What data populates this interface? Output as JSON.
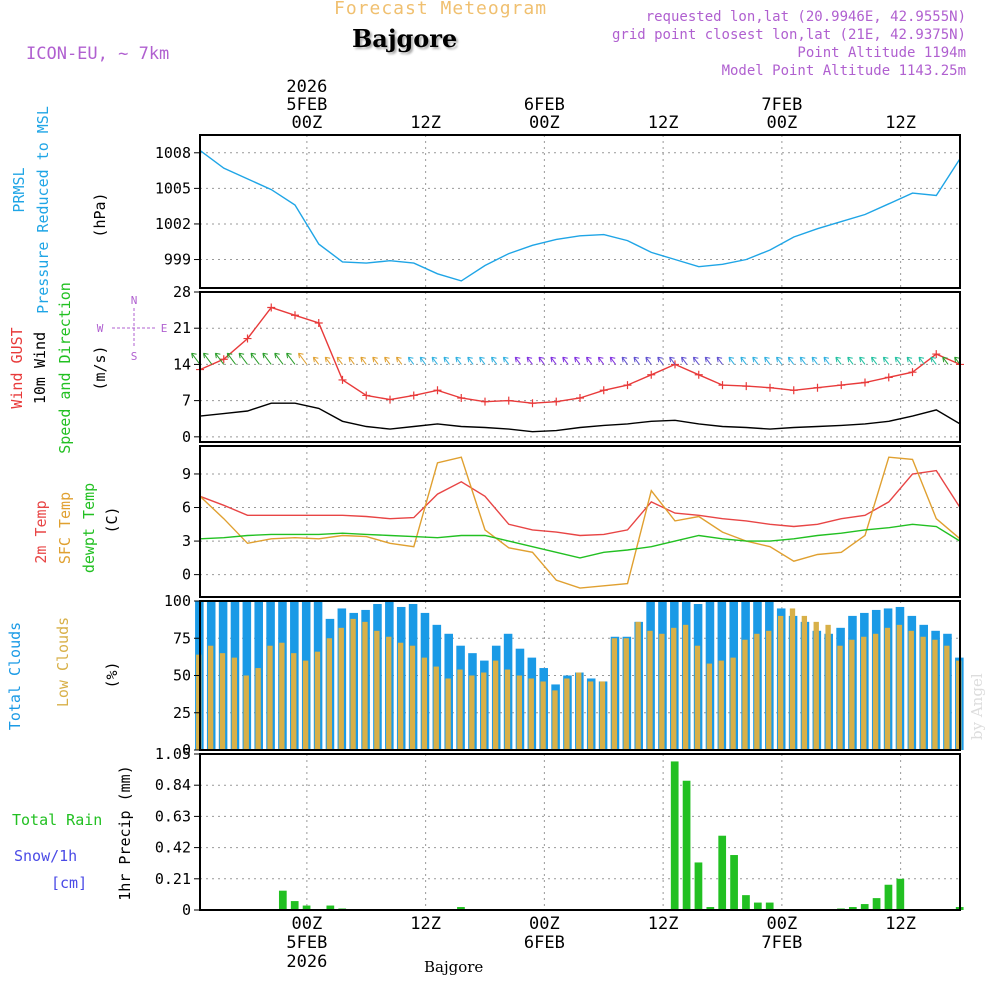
{
  "header": {
    "forecast_title": "Forecast Meteogram",
    "location": "Bajgore",
    "model": "ICON-EU, ~ 7km",
    "requested": "requested lon,lat (20.9946E, 42.9555N)",
    "grid_point": "grid point closest lon,lat (21E, 42.9375N)",
    "point_altitude": "Point Altitude 1194m",
    "model_altitude": "Model Point Altitude 1143.25m",
    "footer_location": "Bajgore",
    "watermark": "by Angel"
  },
  "colors": {
    "pressure": "#1fa5e6",
    "gust": "#e83a3a",
    "wind": "#000000",
    "temp2m": "#e84545",
    "sfc": "#e0a030",
    "dew": "#22c022",
    "total_clouds": "#1a9ae6",
    "low_clouds": "#d8b048",
    "rain": "#22c022",
    "snow": "#4a4ae6",
    "axis_label_purple": "#b060d0"
  },
  "chart_data": [
    {
      "type": "line",
      "panel": "pressure",
      "label_lines": [
        "PRMSL",
        "Pressure Reduced to MSL"
      ],
      "unit": "(hPa)",
      "yticks": [
        999,
        1002,
        1005,
        1008
      ],
      "ylim": [
        996.6,
        1009.5
      ],
      "x_hours": [
        0,
        2,
        4,
        6,
        8,
        10,
        12,
        14,
        16,
        18,
        20,
        22,
        24,
        26,
        28,
        30,
        32,
        34,
        36,
        38,
        40,
        42,
        44,
        46,
        48,
        50,
        52,
        54,
        56,
        58,
        60,
        62,
        64
      ],
      "series": [
        {
          "name": "PRMSL",
          "values": [
            1008.2,
            1006.7,
            1005.8,
            1004.9,
            1003.6,
            1000.3,
            998.8,
            998.7,
            998.9,
            998.7,
            997.8,
            997.2,
            998.5,
            999.5,
            1000.2,
            1000.7,
            1001.0,
            1001.1,
            1000.6,
            999.6,
            999.0,
            998.4,
            998.6,
            999.0,
            999.8,
            1000.9,
            1001.6,
            1002.2,
            1002.8,
            1003.7,
            1004.6,
            1004.4,
            1007.5
          ]
        }
      ]
    },
    {
      "type": "line",
      "panel": "wind",
      "label_lines": [
        "Wind GUST",
        "10m Wind",
        "Speed and Direction"
      ],
      "unit": "(m/s)",
      "compass": {
        "n": "N",
        "s": "S",
        "e": "E",
        "w": "W"
      },
      "yticks": [
        0,
        7,
        14,
        21,
        28
      ],
      "ylim": [
        -1,
        28
      ],
      "x_hours": [
        0,
        2,
        4,
        6,
        8,
        10,
        12,
        14,
        16,
        18,
        20,
        22,
        24,
        26,
        28,
        30,
        32,
        34,
        36,
        38,
        40,
        42,
        44,
        46,
        48,
        50,
        52,
        54,
        56,
        58,
        60,
        62,
        64
      ],
      "series": [
        {
          "name": "Wind GUST",
          "values": [
            13,
            15,
            19,
            25,
            23.5,
            22,
            11,
            8,
            7.2,
            8,
            9,
            7.5,
            6.8,
            7,
            6.5,
            6.8,
            7.5,
            9,
            10,
            12,
            14,
            12,
            10,
            9.8,
            9.5,
            9,
            9.5,
            10,
            10.5,
            11.5,
            12.5,
            16,
            14
          ]
        },
        {
          "name": "10m Wind",
          "values": [
            4,
            4.5,
            5,
            6.5,
            6.5,
            5.5,
            3,
            2,
            1.5,
            2,
            2.5,
            2,
            1.8,
            1.5,
            1,
            1.2,
            1.8,
            2.2,
            2.5,
            3,
            3.2,
            2.5,
            2,
            1.8,
            1.5,
            1.8,
            2,
            2.2,
            2.5,
            3,
            4,
            5.2,
            2.5
          ]
        }
      ],
      "arrow_flank_values": 14
    },
    {
      "type": "line",
      "panel": "temperature",
      "label_lines": [
        "2m Temp",
        "SFC Temp",
        "dewpt Temp"
      ],
      "unit": "(C)",
      "yticks": [
        0,
        3,
        6,
        9
      ],
      "ylim": [
        -2,
        11.5
      ],
      "x_hours": [
        0,
        2,
        4,
        6,
        8,
        10,
        12,
        14,
        16,
        18,
        20,
        22,
        24,
        26,
        28,
        30,
        32,
        34,
        36,
        38,
        40,
        42,
        44,
        46,
        48,
        50,
        52,
        54,
        56,
        58,
        60,
        62,
        64
      ],
      "series": [
        {
          "name": "2m Temp",
          "values": [
            7,
            6.2,
            5.3,
            5.3,
            5.3,
            5.3,
            5.3,
            5.2,
            5.0,
            5.1,
            7.2,
            8.3,
            7,
            4.5,
            4,
            3.8,
            3.5,
            3.6,
            4.0,
            6.5,
            5.5,
            5.3,
            5,
            4.8,
            4.5,
            4.3,
            4.5,
            5,
            5.3,
            6.5,
            9.0,
            9.3,
            6
          ]
        },
        {
          "name": "SFC Temp",
          "values": [
            7,
            5,
            2.8,
            3.2,
            3.3,
            3.2,
            3.5,
            3.4,
            2.8,
            2.5,
            10,
            10.5,
            4,
            2.4,
            2,
            -0.5,
            -1.2,
            -1.0,
            -0.8,
            7.5,
            4.8,
            5.2,
            3.8,
            3,
            2.5,
            1.2,
            1.8,
            2,
            3.5,
            10.5,
            10.3,
            5,
            3.2
          ]
        },
        {
          "name": "dewpt Temp",
          "values": [
            3.2,
            3.3,
            3.5,
            3.6,
            3.6,
            3.6,
            3.7,
            3.6,
            3.5,
            3.4,
            3.3,
            3.5,
            3.5,
            3,
            2.5,
            2,
            1.5,
            2,
            2.2,
            2.5,
            3,
            3.5,
            3.2,
            3,
            3,
            3.2,
            3.5,
            3.7,
            4,
            4.2,
            4.5,
            4.3,
            3
          ]
        }
      ]
    },
    {
      "type": "bar",
      "panel": "clouds",
      "label_lines": [
        "Total Clouds",
        "Low Clouds"
      ],
      "unit": "(%)",
      "yticks": [
        0,
        25,
        50,
        75,
        100
      ],
      "ylim": [
        0,
        100
      ],
      "x_hours": [
        0,
        1,
        2,
        3,
        4,
        5,
        6,
        7,
        8,
        9,
        10,
        11,
        12,
        13,
        14,
        15,
        16,
        17,
        18,
        19,
        20,
        21,
        22,
        23,
        24,
        25,
        26,
        27,
        28,
        29,
        30,
        31,
        32,
        33,
        34,
        35,
        36,
        37,
        38,
        39,
        40,
        41,
        42,
        43,
        44,
        45,
        46,
        47,
        48,
        49,
        50,
        51,
        52,
        53,
        54,
        55,
        56,
        57,
        58,
        59,
        60,
        61,
        62,
        63,
        64
      ],
      "series": [
        {
          "name": "Total Clouds",
          "values": [
            100,
            100,
            100,
            100,
            100,
            100,
            100,
            100,
            100,
            100,
            100,
            88,
            95,
            92,
            94,
            98,
            100,
            96,
            98,
            92,
            84,
            78,
            70,
            65,
            60,
            70,
            78,
            68,
            62,
            55,
            44,
            50,
            52,
            48,
            46,
            76,
            76,
            86,
            100,
            100,
            100,
            100,
            98,
            100,
            100,
            100,
            100,
            100,
            100,
            95,
            90,
            86,
            80,
            78,
            82,
            90,
            92,
            94,
            95,
            96,
            90,
            84,
            80,
            78,
            62
          ]
        },
        {
          "name": "Low Clouds",
          "values": [
            64,
            70,
            65,
            62,
            50,
            55,
            70,
            72,
            65,
            60,
            66,
            75,
            82,
            88,
            86,
            80,
            76,
            72,
            70,
            62,
            56,
            48,
            54,
            50,
            52,
            60,
            54,
            50,
            48,
            46,
            40,
            48,
            52,
            46,
            46,
            75,
            75,
            86,
            80,
            78,
            82,
            84,
            70,
            58,
            60,
            62,
            74,
            78,
            80,
            90,
            95,
            90,
            86,
            84,
            70,
            74,
            76,
            78,
            82,
            84,
            80,
            76,
            74,
            70,
            60
          ]
        }
      ]
    },
    {
      "type": "bar",
      "panel": "precip",
      "label_lines": [
        "Total Rain",
        "Snow/1h",
        "[cm]"
      ],
      "unit": "1hr Precip (mm)",
      "yticks": [
        0,
        0.21,
        0.42,
        0.63,
        0.84,
        1.05
      ],
      "ylim": [
        0,
        1.05
      ],
      "x_hours": [
        0,
        1,
        2,
        3,
        4,
        5,
        6,
        7,
        8,
        9,
        10,
        11,
        12,
        13,
        14,
        15,
        16,
        17,
        18,
        19,
        20,
        21,
        22,
        23,
        24,
        25,
        26,
        27,
        28,
        29,
        30,
        31,
        32,
        33,
        34,
        35,
        36,
        37,
        38,
        39,
        40,
        41,
        42,
        43,
        44,
        45,
        46,
        47,
        48,
        49,
        50,
        51,
        52,
        53,
        54,
        55,
        56,
        57,
        58,
        59,
        60,
        61,
        62,
        63,
        64
      ],
      "series": [
        {
          "name": "Total Rain",
          "values": [
            0,
            0,
            0,
            0,
            0,
            0,
            0,
            0.13,
            0.06,
            0.03,
            0,
            0.03,
            0.01,
            0,
            0,
            0,
            0,
            0,
            0,
            0,
            0,
            0,
            0.02,
            0,
            0,
            0,
            0,
            0,
            0,
            0,
            0,
            0,
            0,
            0,
            0,
            0,
            0,
            0,
            0,
            0,
            1.0,
            0.87,
            0.32,
            0.02,
            0.5,
            0.37,
            0.1,
            0.05,
            0.05,
            0,
            0,
            0,
            0,
            0,
            0.01,
            0.02,
            0.04,
            0.08,
            0.17,
            0.21,
            0,
            0,
            0,
            0,
            0.02
          ]
        }
      ]
    }
  ],
  "time_axis": {
    "top_ticks": [
      {
        "hour": 9,
        "line1": "2026",
        "line2": "5FEB",
        "line3": "00Z"
      },
      {
        "hour": 19,
        "line1": "",
        "line2": "",
        "line3": "12Z"
      },
      {
        "hour": 29,
        "line1": "",
        "line2": "6FEB",
        "line3": "00Z"
      },
      {
        "hour": 39,
        "line1": "",
        "line2": "",
        "line3": "12Z"
      },
      {
        "hour": 49,
        "line1": "",
        "line2": "7FEB",
        "line3": "00Z"
      },
      {
        "hour": 59,
        "line1": "",
        "line2": "",
        "line3": "12Z"
      }
    ],
    "bottom_ticks": [
      {
        "hour": 9,
        "line1": "00Z",
        "line2": "5FEB",
        "line3": "2026"
      },
      {
        "hour": 19,
        "line1": "12Z",
        "line2": "",
        "line3": ""
      },
      {
        "hour": 29,
        "line1": "00Z",
        "line2": "6FEB",
        "line3": ""
      },
      {
        "hour": 39,
        "line1": "12Z",
        "line2": "",
        "line3": ""
      },
      {
        "hour": 49,
        "line1": "00Z",
        "line2": "7FEB",
        "line3": ""
      },
      {
        "hour": 59,
        "line1": "12Z",
        "line2": "",
        "line3": ""
      }
    ]
  }
}
